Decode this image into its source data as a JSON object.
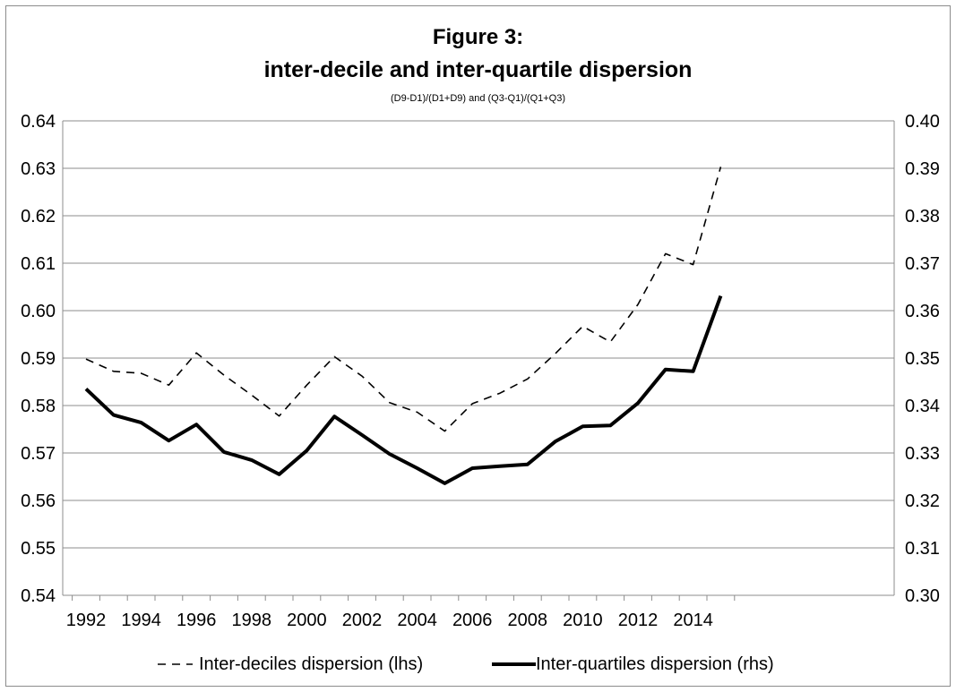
{
  "chart_data": {
    "type": "line",
    "title": "Figure 3:",
    "subtitle": "inter-decile and inter-quartile dispersion",
    "formula": "(D9-D1)/(D1+D9) and (Q3-Q1)/(Q1+Q3)",
    "x": [
      1992,
      1993,
      1994,
      1995,
      1996,
      1997,
      1998,
      1999,
      2000,
      2001,
      2002,
      2003,
      2004,
      2005,
      2006,
      2007,
      2008,
      2009,
      2010,
      2011,
      2012,
      2013,
      2014,
      2015
    ],
    "x_tick_labels": [
      "1992",
      "1994",
      "1996",
      "1998",
      "2000",
      "2002",
      "2004",
      "2006",
      "2008",
      "2010",
      "2012",
      "2014"
    ],
    "y_left_ticks": [
      "0.54",
      "0.55",
      "0.56",
      "0.57",
      "0.58",
      "0.59",
      "0.60",
      "0.61",
      "0.62",
      "0.63",
      "0.64"
    ],
    "y_right_ticks": [
      "0.30",
      "0.31",
      "0.32",
      "0.33",
      "0.34",
      "0.35",
      "0.36",
      "0.37",
      "0.38",
      "0.39",
      "0.40"
    ],
    "ylim_left": [
      0.54,
      0.64
    ],
    "ylim_right": [
      0.3,
      0.4
    ],
    "grid": true,
    "legend_position": "bottom",
    "series": [
      {
        "name": "Inter-deciles dispersion (lhs)",
        "axis": "left",
        "style": "dashed",
        "values": [
          0.5898,
          0.5872,
          0.5868,
          0.5843,
          0.5911,
          0.5864,
          0.5822,
          0.5778,
          0.5843,
          0.5903,
          0.5862,
          0.5806,
          0.5786,
          0.5746,
          0.5804,
          0.5826,
          0.5856,
          0.5909,
          0.5967,
          0.5934,
          0.6013,
          0.612,
          0.6097,
          0.6303
        ]
      },
      {
        "name": "Inter-quartiles dispersion (rhs)",
        "axis": "right",
        "style": "solid",
        "values": [
          0.3435,
          0.338,
          0.3364,
          0.3326,
          0.336,
          0.3302,
          0.3285,
          0.3255,
          0.3305,
          0.3377,
          0.3338,
          0.3298,
          0.3268,
          0.3236,
          0.3268,
          0.3272,
          0.3276,
          0.3324,
          0.3356,
          0.3358,
          0.3405,
          0.3476,
          0.3472,
          0.3631
        ]
      }
    ]
  }
}
